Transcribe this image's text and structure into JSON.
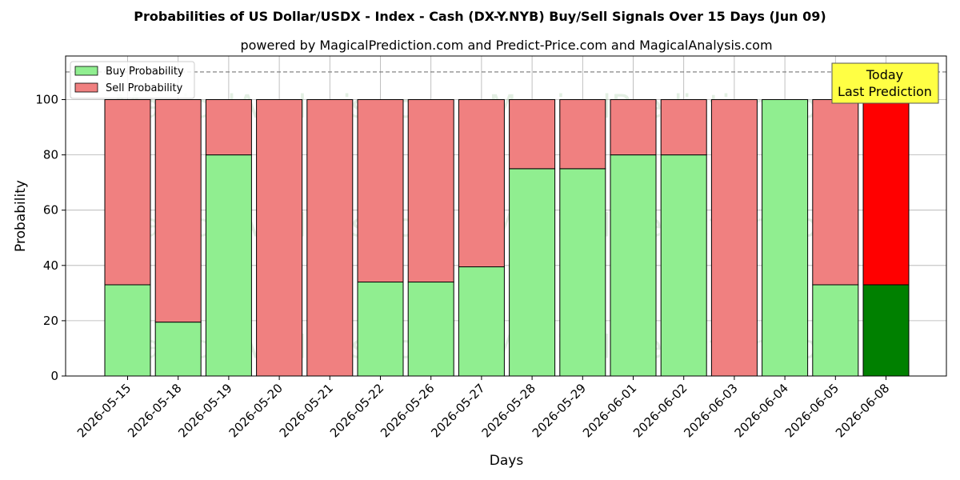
{
  "chart_data": {
    "type": "bar",
    "stacked": true,
    "title": "Probabilities of US Dollar/USDX - Index - Cash (DX-Y.NYB) Buy/Sell Signals Over 15 Days (Jun 09)",
    "subtitle": "powered by MagicalPrediction.com and Predict-Price.com and MagicalAnalysis.com",
    "xlabel": "Days",
    "ylabel": "Probability",
    "ylim": [
      0,
      115
    ],
    "yticks": [
      0,
      20,
      40,
      60,
      80,
      100
    ],
    "reference_line": 110,
    "grid": true,
    "legend_position": "top-left",
    "categories": [
      "2026-05-15",
      "2026-05-18",
      "2026-05-19",
      "2026-05-20",
      "2026-05-21",
      "2026-05-22",
      "2026-05-26",
      "2026-05-27",
      "2026-05-28",
      "2026-05-29",
      "2026-06-01",
      "2026-06-02",
      "2026-06-03",
      "2026-06-04",
      "2026-06-05",
      "2026-06-08"
    ],
    "series": [
      {
        "name": "Buy Probability",
        "color": "#90ee90",
        "highlight_color": "#008000",
        "values": [
          33,
          19.5,
          80,
          0,
          0,
          34,
          34,
          39.5,
          75,
          75,
          80,
          80,
          0,
          100,
          33,
          33
        ]
      },
      {
        "name": "Sell Probability",
        "color": "#f08080",
        "highlight_color": "#ff0000",
        "values": [
          67,
          80.5,
          20,
          100,
          100,
          66,
          66,
          60.5,
          25,
          25,
          20,
          20,
          100,
          0,
          67,
          67
        ]
      }
    ],
    "highlight_index": 15,
    "annotation": {
      "line1": "Today",
      "line2": "Last Prediction",
      "background": "#ffff44"
    },
    "watermarks": [
      "MagicalAnalysis.com",
      "MagicalPrediction.com"
    ]
  }
}
